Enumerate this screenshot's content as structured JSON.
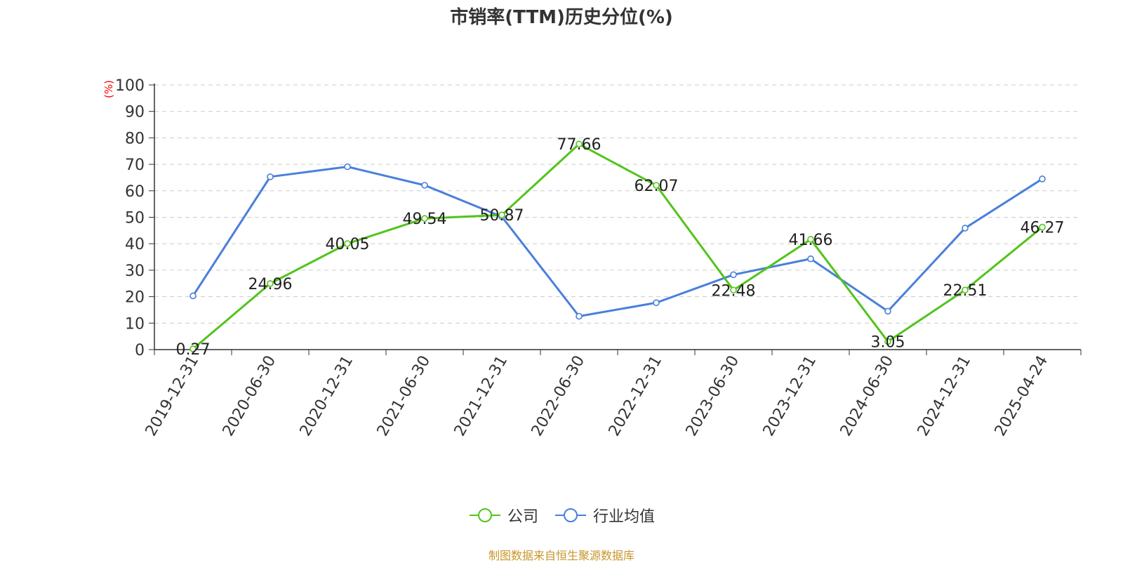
{
  "chart_data": {
    "type": "line",
    "title": "市销率(TTM)历史分位(%)",
    "ylabel": "(%)",
    "xlabel": "",
    "ylim": [
      0,
      100
    ],
    "yticks": [
      0,
      10,
      20,
      30,
      40,
      50,
      60,
      70,
      80,
      90,
      100
    ],
    "grid": true,
    "legend_position": "bottom",
    "categories": [
      "2019-12-31",
      "2020-06-30",
      "2020-12-31",
      "2021-06-30",
      "2021-12-31",
      "2022-06-30",
      "2022-12-31",
      "2023-06-30",
      "2023-12-31",
      "2024-06-30",
      "2024-12-31",
      "2025-04-24"
    ],
    "series": [
      {
        "name": "公司",
        "color": "#52c41a",
        "show_labels": true,
        "values": [
          0.27,
          24.96,
          40.05,
          49.54,
          50.87,
          77.66,
          62.07,
          22.48,
          41.66,
          3.05,
          22.51,
          46.27
        ]
      },
      {
        "name": "行业均值",
        "color": "#4a7fdc",
        "show_labels": false,
        "values": [
          20.3,
          65.3,
          69.1,
          62.1,
          50.2,
          12.6,
          17.7,
          28.3,
          34.3,
          14.5,
          45.9,
          64.5
        ]
      }
    ]
  },
  "footer": {
    "text": "制图数据来自恒生聚源数据库",
    "color": "#c8962c"
  },
  "ylabel_color": "#ff0000"
}
